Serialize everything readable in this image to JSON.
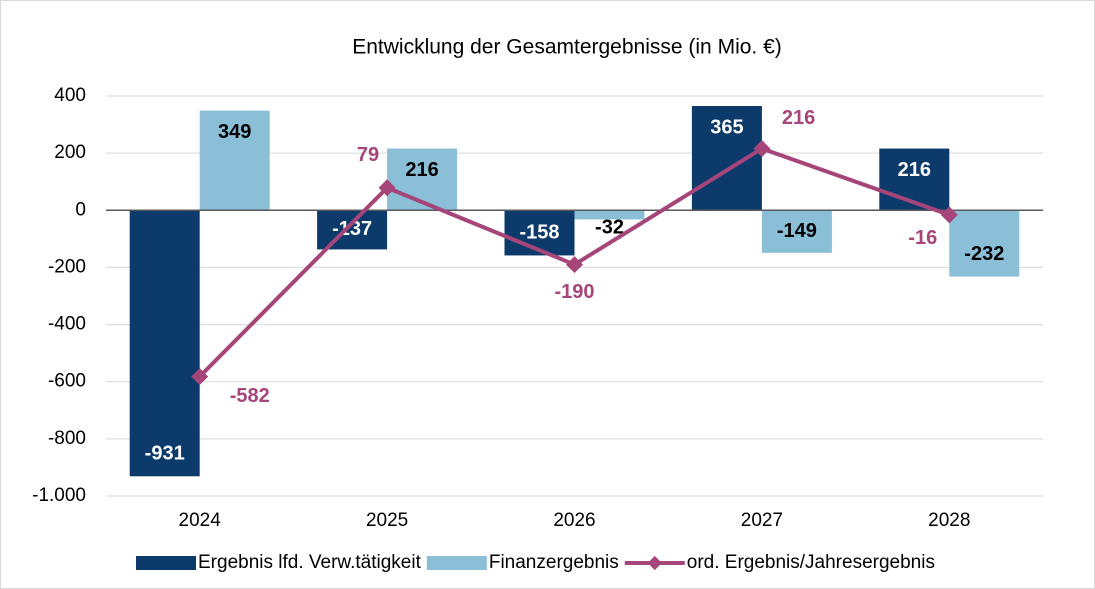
{
  "chart_data": {
    "type": "bar-line",
    "title": "Entwicklung der Gesamtergebnisse (in Mio. €)",
    "categories": [
      "2024",
      "2025",
      "2026",
      "2027",
      "2028"
    ],
    "series": [
      {
        "name": "Ergebnis lfd. Verw.tätigkeit",
        "type": "bar",
        "color": "#0b3a6b",
        "values": [
          -931,
          -137,
          -158,
          365,
          216
        ]
      },
      {
        "name": "Finanzergebnis",
        "type": "bar",
        "color": "#8bbfd8",
        "values": [
          349,
          216,
          -32,
          -149,
          -232
        ]
      },
      {
        "name": "ord. Ergebnis/Jahresergebnis",
        "type": "line",
        "color": "#a6457a",
        "values": [
          -582,
          79,
          -190,
          216,
          -16
        ]
      }
    ],
    "ylim": [
      -1000,
      400
    ],
    "yticks": [
      {
        "value": -1000,
        "label": "-1.000"
      },
      -800,
      -600,
      -400,
      -200,
      0,
      200,
      400
    ],
    "grid": true,
    "legend": "bottom"
  }
}
